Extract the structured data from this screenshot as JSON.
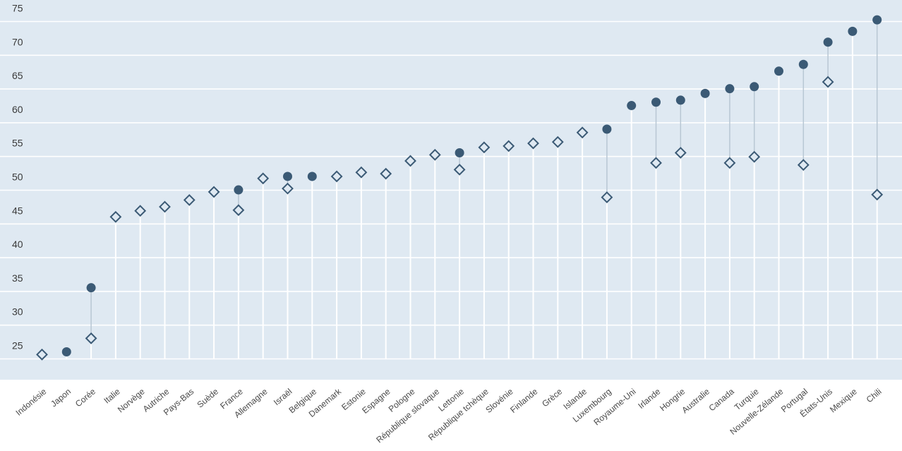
{
  "chart_data": {
    "type": "scatter",
    "title": "",
    "xlabel": "",
    "ylabel": "",
    "ylim": [
      22,
      78
    ],
    "yticks": [
      25,
      30,
      35,
      40,
      45,
      50,
      55,
      60,
      65,
      70,
      75
    ],
    "grid": true,
    "legend": "none",
    "colors": {
      "background": "#dfe9f2",
      "gridline": "#ffffff",
      "marker": "#3b5a75",
      "connector": "#b8c7d4"
    },
    "categories": [
      "Indonésie",
      "Japon",
      "Corée",
      "Italie",
      "Norvège",
      "Autriche",
      "Pays-Bas",
      "Suède",
      "France",
      "Allemagne",
      "Israël",
      "Belgique",
      "Danemark",
      "Estonie",
      "Espagne",
      "Pologne",
      "République slovaque",
      "Lettonie",
      "République tchèque",
      "Slovénie",
      "Finlande",
      "Grèce",
      "Islande",
      "Luxembourg",
      "Royaume-Uni",
      "Irlande",
      "Hongrie",
      "Australie",
      "Canada",
      "Turquie",
      "Nouvelle-Zélande",
      "Portugal",
      "États-Unis",
      "Mexique",
      "Chili"
    ],
    "series": [
      {
        "marker": "circle",
        "values": [
          null,
          25.0,
          34.5,
          null,
          null,
          null,
          null,
          null,
          49.0,
          null,
          51.0,
          51.0,
          null,
          null,
          null,
          null,
          null,
          54.5,
          null,
          null,
          null,
          null,
          null,
          58.0,
          61.5,
          62.0,
          62.3,
          63.3,
          64.0,
          64.3,
          66.6,
          67.6,
          70.9,
          72.5,
          74.2
        ]
      },
      {
        "marker": "diamond",
        "values": [
          24.6,
          null,
          27.0,
          45.0,
          45.9,
          46.5,
          47.5,
          48.7,
          46.0,
          50.7,
          49.2,
          null,
          51.0,
          51.6,
          51.4,
          53.3,
          54.2,
          52.0,
          55.3,
          55.5,
          55.9,
          56.1,
          57.5,
          47.9,
          null,
          53.0,
          54.5,
          null,
          53.0,
          53.9,
          null,
          52.7,
          65.0,
          null,
          48.3
        ]
      }
    ]
  }
}
